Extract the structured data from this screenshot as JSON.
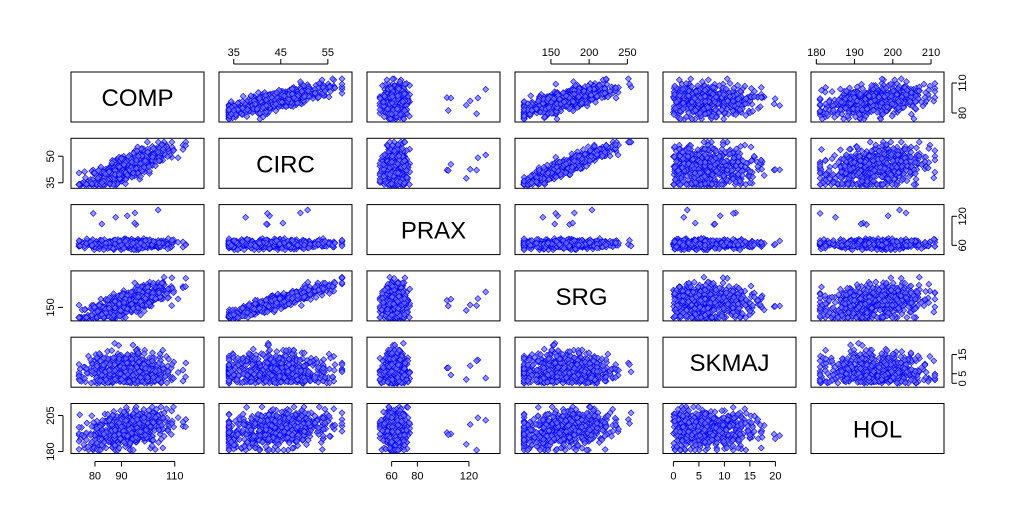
{
  "chart_data": {
    "type": "scatter",
    "kind": "scatterplot-matrix",
    "variables": [
      {
        "name": "COMP",
        "range": [
          73,
          119
        ],
        "ticks": [
          80,
          90,
          110
        ],
        "tick_side": "bottom"
      },
      {
        "name": "CIRC",
        "range": [
          33,
          59
        ],
        "ticks": [
          35,
          45,
          55
        ],
        "tick_side": "top"
      },
      {
        "name": "PRAX",
        "range": [
          45,
          140
        ],
        "ticks": [
          60,
          80,
          120
        ],
        "tick_side": "bottom"
      },
      {
        "name": "SRG",
        "range": [
          110,
          270
        ],
        "ticks": [
          150,
          200,
          250
        ],
        "tick_side": "top"
      },
      {
        "name": "SKMAJ",
        "range": [
          -1,
          23
        ],
        "ticks": [
          0,
          5,
          10,
          15,
          20
        ],
        "tick_side": "bottom"
      },
      {
        "name": "HOL",
        "range": [
          180,
          212
        ],
        "ticks": [
          180,
          190,
          200,
          210
        ],
        "tick_side": "top"
      }
    ],
    "row_axis_ticks": [
      {
        "row": 0,
        "side": "right",
        "ticks": [
          80,
          110
        ],
        "labels": [
          "80",
          "110"
        ]
      },
      {
        "row": 1,
        "side": "left",
        "ticks": [
          35,
          50
        ],
        "labels": [
          "35",
          "50"
        ]
      },
      {
        "row": 2,
        "side": "right",
        "ticks": [
          60,
          120
        ],
        "labels": [
          "60",
          "120"
        ]
      },
      {
        "row": 3,
        "side": "left",
        "ticks": [
          150
        ],
        "labels": [
          "150"
        ]
      },
      {
        "row": 4,
        "side": "right",
        "ticks": [
          0,
          5,
          15
        ],
        "labels": [
          "0",
          "5",
          "15"
        ]
      },
      {
        "row": 5,
        "side": "left",
        "ticks": [
          180,
          205
        ],
        "labels": [
          "180",
          "205"
        ]
      }
    ],
    "n_points": 560,
    "point_color": "#0000ff",
    "point_fill": "#6f6fff",
    "grid": false,
    "legend": "none",
    "title": "",
    "xlabel": "",
    "ylabel": ""
  }
}
